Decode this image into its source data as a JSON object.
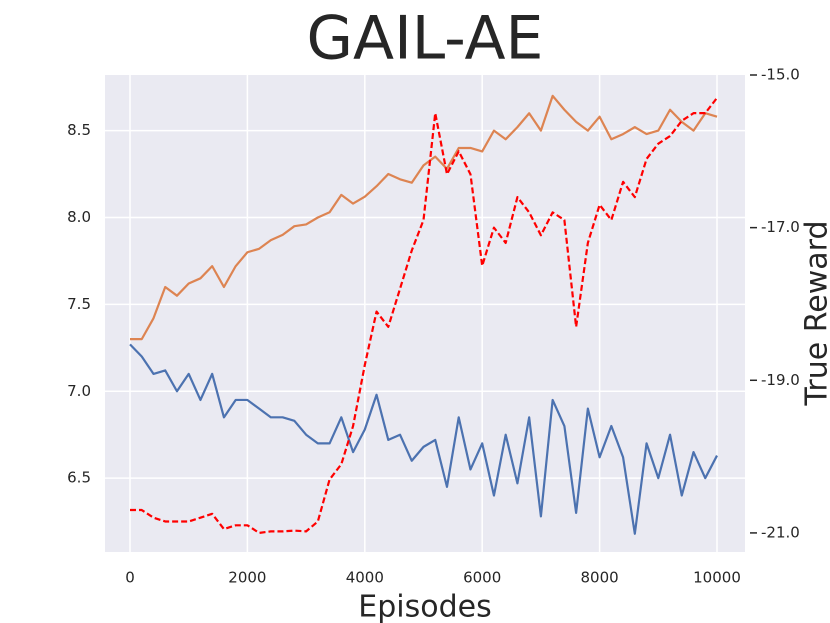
{
  "chart_data": {
    "type": "line",
    "title": "GAIL-AE",
    "xlabel": "Episodes",
    "y2label": "True Reward",
    "grid": true,
    "xlim": [
      -426,
      10477
    ],
    "ylim": [
      6.075,
      8.82
    ],
    "y2lim": [
      -21.25,
      -15.0
    ],
    "xticks": [
      0,
      2000,
      4000,
      6000,
      8000,
      10000
    ],
    "yticks": [
      6.5,
      {
        "value": 7.0,
        "label": "7.0"
      },
      7.5,
      {
        "value": 8.0,
        "label": "8.0"
      },
      8.5
    ],
    "y2ticks": [
      {
        "value": -15,
        "label": "-15.0"
      },
      {
        "value": -17,
        "label": "-17.0"
      },
      {
        "value": -19,
        "label": "-19.0"
      },
      {
        "value": -21,
        "label": "-21.0"
      }
    ],
    "x": [
      0,
      200,
      400,
      600,
      800,
      1000,
      1200,
      1400,
      1600,
      1800,
      2000,
      2200,
      2400,
      2600,
      2800,
      3000,
      3200,
      3400,
      3600,
      3800,
      4000,
      4200,
      4400,
      4600,
      4800,
      5000,
      5200,
      5400,
      5600,
      5800,
      6000,
      6200,
      6400,
      6600,
      6800,
      7000,
      7200,
      7400,
      7600,
      7800,
      8000,
      8200,
      8400,
      8600,
      8800,
      9000,
      9200,
      9400,
      9600,
      9800,
      10000
    ],
    "series": [
      {
        "color": "#4c72b0",
        "values": [
          7.27,
          7.2,
          7.1,
          7.12,
          7.0,
          7.1,
          6.95,
          7.1,
          6.85,
          6.95,
          6.95,
          6.9,
          6.85,
          6.85,
          6.83,
          6.75,
          6.7,
          6.7,
          6.85,
          6.65,
          6.78,
          6.98,
          6.72,
          6.75,
          6.6,
          6.68,
          6.72,
          6.45,
          6.85,
          6.55,
          6.7,
          6.4,
          6.75,
          6.47,
          6.85,
          6.28,
          6.95,
          6.8,
          6.3,
          6.9,
          6.62,
          6.8,
          6.62,
          6.18,
          6.7,
          6.5,
          6.75,
          6.4,
          6.65,
          6.5,
          6.63
        ]
      },
      {
        "color": "#dd8452",
        "values": [
          7.3,
          7.3,
          7.42,
          7.6,
          7.55,
          7.62,
          7.65,
          7.72,
          7.6,
          7.72,
          7.8,
          7.82,
          7.87,
          7.9,
          7.95,
          7.96,
          8.0,
          8.03,
          8.13,
          8.08,
          8.12,
          8.18,
          8.25,
          8.22,
          8.2,
          8.3,
          8.35,
          8.28,
          8.4,
          8.4,
          8.38,
          8.5,
          8.45,
          8.52,
          8.6,
          8.5,
          8.7,
          8.62,
          8.55,
          8.5,
          8.58,
          8.45,
          8.48,
          8.52,
          8.48,
          8.5,
          8.62,
          8.55,
          8.5,
          8.6,
          8.58
        ]
      },
      {
        "color": "#ff0000",
        "dashed": true,
        "axis": "y2",
        "values": [
          -20.7,
          -20.7,
          -20.8,
          -20.85,
          -20.85,
          -20.85,
          -20.8,
          -20.75,
          -20.95,
          -20.9,
          -20.9,
          -21.0,
          -20.98,
          -20.98,
          -20.97,
          -20.98,
          -20.85,
          -20.3,
          -20.1,
          -19.6,
          -18.8,
          -18.1,
          -18.3,
          -17.8,
          -17.3,
          -16.9,
          -15.5,
          -16.3,
          -16.0,
          -16.3,
          -17.5,
          -17.0,
          -17.2,
          -16.6,
          -16.8,
          -17.1,
          -16.8,
          -16.9,
          -18.3,
          -17.2,
          -16.7,
          -16.9,
          -16.4,
          -16.6,
          -16.1,
          -15.9,
          -15.8,
          -15.6,
          -15.5,
          -15.5,
          -15.3
        ]
      }
    ]
  }
}
